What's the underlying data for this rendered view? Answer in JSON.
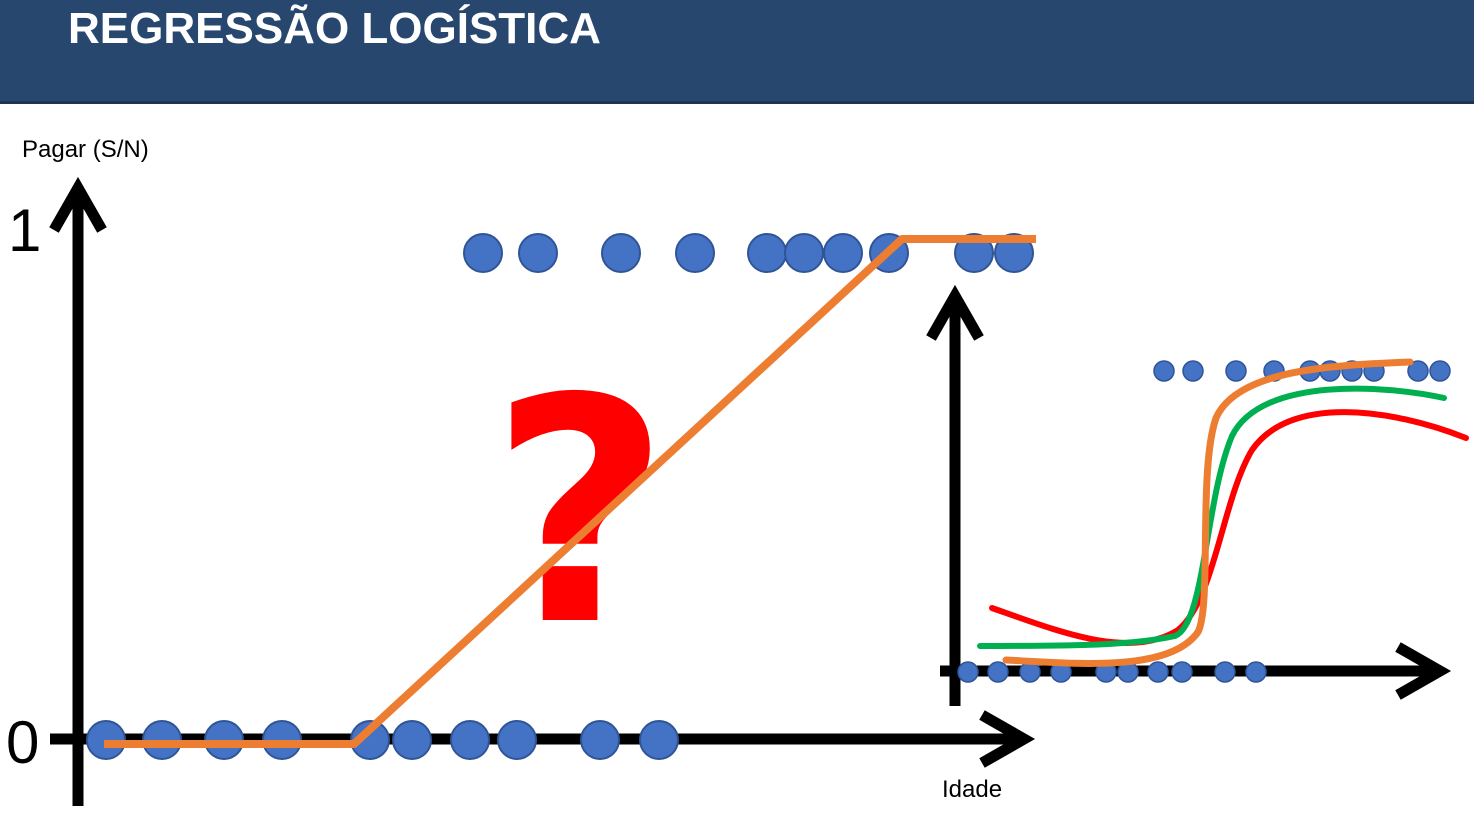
{
  "header": {
    "title": "REGRESSÃO LOGÍSTICA",
    "background_color": "#27476e"
  },
  "main_chart": {
    "y_axis_label": "Pagar (S/N)",
    "x_axis_label": "Idade",
    "y_tick_top": "1",
    "y_tick_bottom": "0",
    "question_mark": "?",
    "point_color": "#4472c4",
    "point_border": "#2f5597",
    "fit_line_color": "#ed7d31",
    "question_color": "#ff0000"
  },
  "inset_chart": {
    "curve_colors": [
      "#ff0000",
      "#00b050",
      "#ed7d31"
    ]
  }
}
